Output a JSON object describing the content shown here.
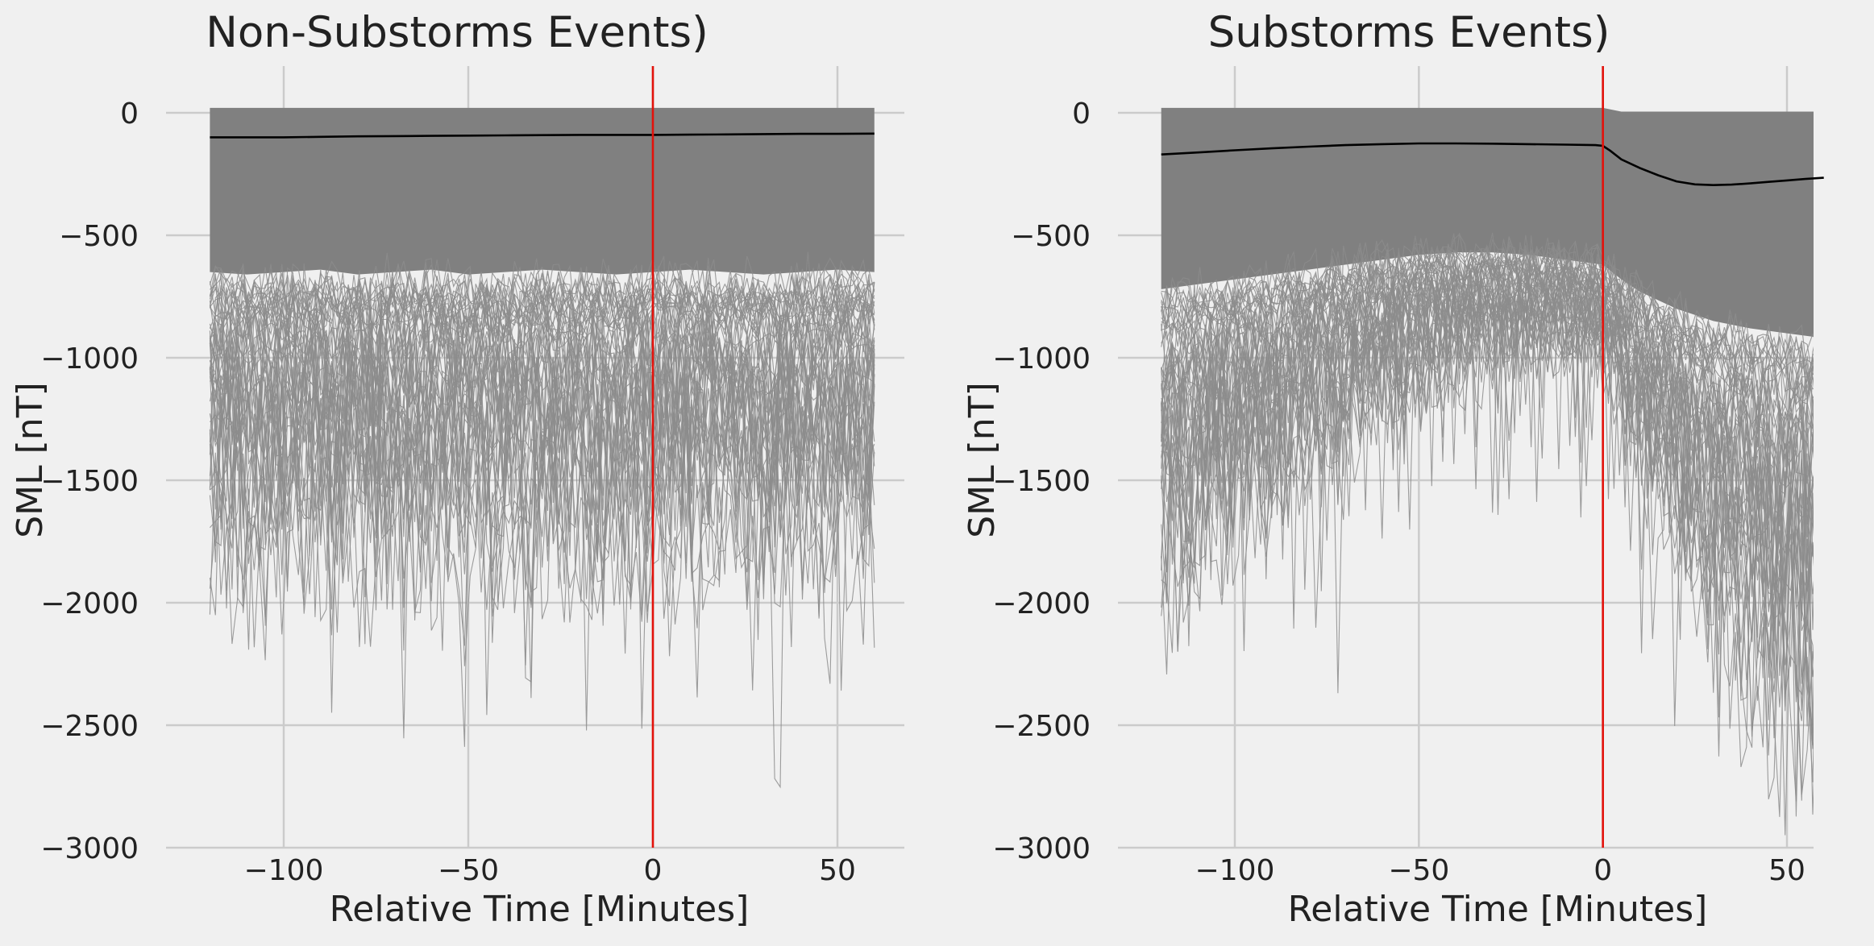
{
  "chart_data": [
    {
      "type": "line",
      "title": "Non-Substorms Events)",
      "xlabel": "Relative Time [Minutes]",
      "ylabel": "SML [nT]",
      "xlim": [
        -125,
        65
      ],
      "ylim": [
        -3000,
        180
      ],
      "xticks": [
        -100,
        -50,
        0,
        50
      ],
      "xtick_labels": [
        "−100",
        "−50",
        "0",
        "50"
      ],
      "yticks": [
        0,
        -500,
        -1000,
        -1500,
        -2000,
        -2500,
        -3000
      ],
      "ytick_labels": [
        "0",
        "−500",
        "−1000",
        "−1500",
        "−2000",
        "−2500",
        "−3000"
      ],
      "grid": true,
      "colors": {
        "envelope": "#808080",
        "traces": "#8c8c8c",
        "mean": "#000000",
        "onset": "#e3120b"
      },
      "envelope": {
        "x": [
          -120,
          -110,
          -100,
          -90,
          -80,
          -70,
          -60,
          -50,
          -40,
          -30,
          -20,
          -10,
          0,
          10,
          20,
          30,
          40,
          50,
          60
        ],
        "upper": [
          20,
          20,
          20,
          20,
          20,
          20,
          20,
          20,
          20,
          20,
          20,
          20,
          20,
          20,
          20,
          20,
          20,
          20,
          20
        ],
        "lower": [
          -650,
          -660,
          -650,
          -640,
          -660,
          -650,
          -640,
          -660,
          -650,
          -640,
          -650,
          -660,
          -650,
          -640,
          -650,
          -660,
          -650,
          -640,
          -650
        ]
      },
      "series": [
        {
          "x": [
            -120,
            -110,
            -100,
            -90,
            -80,
            -70,
            -60,
            -50,
            -40,
            -30,
            -20,
            -10,
            0,
            10,
            20,
            30,
            40,
            50,
            60
          ],
          "values": [
            -100,
            -100,
            -100,
            -98,
            -96,
            -95,
            -94,
            -93,
            -92,
            -91,
            -90,
            -90,
            -90,
            -89,
            -88,
            -87,
            -86,
            -86,
            -85
          ]
        }
      ],
      "onset_line": {
        "x": 0
      }
    },
    {
      "type": "line",
      "title": "Substorms Events)",
      "xlabel": "Relative Time [Minutes]",
      "ylabel": "SML [nT]",
      "xlim": [
        -125,
        65
      ],
      "ylim": [
        -3000,
        180
      ],
      "xticks": [
        -100,
        -50,
        0,
        50
      ],
      "xtick_labels": [
        "−100",
        "−50",
        "0",
        "50"
      ],
      "yticks": [
        0,
        -500,
        -1000,
        -1500,
        -2000,
        -2500,
        -3000
      ],
      "ytick_labels": [
        "0",
        "−500",
        "−1000",
        "−1500",
        "−2000",
        "−2500",
        "−3000"
      ],
      "grid": true,
      "colors": {
        "envelope": "#808080",
        "traces": "#8c8c8c",
        "mean": "#000000",
        "onset": "#e3120b"
      },
      "envelope": {
        "x": [
          -120,
          -110,
          -100,
          -90,
          -80,
          -70,
          -60,
          -50,
          -40,
          -30,
          -20,
          -10,
          0,
          5,
          10,
          20,
          30,
          40,
          50,
          60
        ],
        "upper": [
          20,
          20,
          20,
          20,
          20,
          20,
          20,
          20,
          20,
          20,
          20,
          20,
          20,
          5,
          5,
          5,
          5,
          5,
          5,
          5
        ],
        "lower": [
          -720,
          -700,
          -680,
          -660,
          -640,
          -620,
          -600,
          -580,
          -570,
          -570,
          -580,
          -600,
          -620,
          -680,
          -730,
          -800,
          -850,
          -880,
          -900,
          -920
        ]
      },
      "series": [
        {
          "x": [
            -120,
            -110,
            -100,
            -90,
            -80,
            -70,
            -60,
            -50,
            -40,
            -30,
            -20,
            -10,
            -2,
            0,
            2,
            5,
            10,
            15,
            20,
            25,
            30,
            35,
            40,
            45,
            50,
            55,
            60
          ],
          "values": [
            -170,
            -162,
            -153,
            -145,
            -138,
            -132,
            -128,
            -125,
            -125,
            -126,
            -128,
            -130,
            -132,
            -135,
            -155,
            -190,
            -225,
            -255,
            -280,
            -292,
            -295,
            -293,
            -288,
            -282,
            -276,
            -270,
            -265
          ]
        }
      ],
      "onset_line": {
        "x": 0
      }
    }
  ]
}
